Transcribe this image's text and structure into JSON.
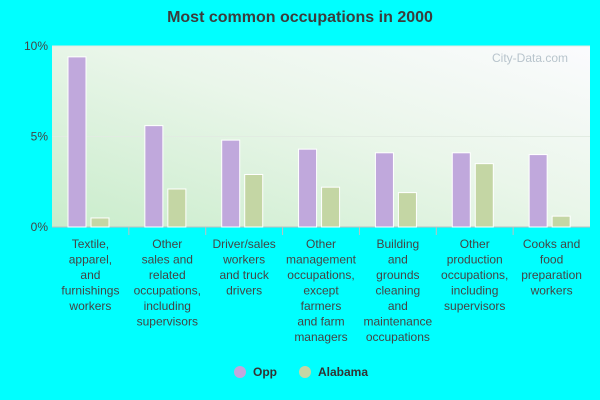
{
  "chart_data": {
    "type": "bar",
    "title": "Most common occupations in 2000",
    "categories": [
      [
        "Textile,",
        "apparel,",
        "and",
        "furnishings",
        "workers"
      ],
      [
        "Other",
        "sales and",
        "related",
        "occupations,",
        "including",
        "supervisors"
      ],
      [
        "Driver/sales",
        "workers",
        "and truck",
        "drivers"
      ],
      [
        "Other",
        "management",
        "occupations,",
        "except",
        "farmers",
        "and farm",
        "managers"
      ],
      [
        "Building",
        "and",
        "grounds",
        "cleaning",
        "and",
        "maintenance",
        "occupations"
      ],
      [
        "Other",
        "production",
        "occupations,",
        "including",
        "supervisors"
      ],
      [
        "Cooks and",
        "food",
        "preparation",
        "workers"
      ]
    ],
    "series": [
      {
        "name": "Opp",
        "color": "#c0a8dc",
        "values": [
          9.4,
          5.6,
          4.8,
          4.3,
          4.1,
          4.1,
          4.0
        ]
      },
      {
        "name": "Alabama",
        "color": "#c4d6a4",
        "values": [
          0.5,
          2.1,
          2.9,
          2.2,
          1.9,
          3.5,
          0.6
        ]
      }
    ],
    "yticks": [
      "10%",
      "5%",
      "0%"
    ],
    "ylim": [
      0,
      10
    ],
    "grid": true,
    "legend_position": "bottom-center"
  },
  "watermark": "City-Data.com"
}
